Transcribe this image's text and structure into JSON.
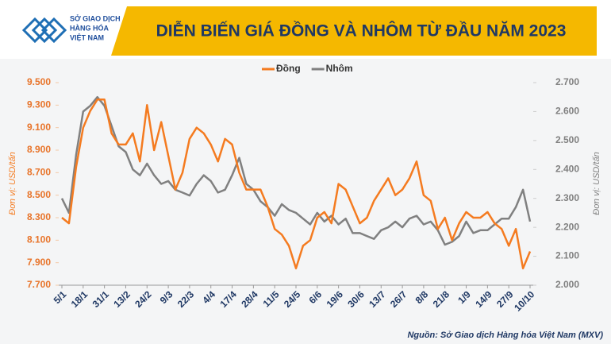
{
  "logo_lines": [
    "SỞ GIAO DỊCH",
    "HÀNG HÓA",
    "VIỆT NAM"
  ],
  "chart_data": {
    "type": "line",
    "title": "DIỄN BIẾN GIÁ ĐỒNG VÀ NHÔM TỪ ĐẦU NĂM 2023",
    "y_label": "Đơn vị: USD/tấn",
    "y2_label": "Đơn vị: USD/tấn",
    "source": "Nguồn: Sở Giao dịch Hàng hóa Việt Nam (MXV)",
    "categories": [
      "5/1",
      null,
      null,
      "18/1",
      null,
      null,
      "31/1",
      null,
      null,
      "13/2",
      null,
      null,
      "24/2",
      null,
      null,
      "9/3",
      null,
      null,
      "22/3",
      null,
      null,
      "4/4",
      null,
      null,
      "17/4",
      null,
      null,
      "28/4",
      null,
      null,
      "11/5",
      null,
      null,
      "24/5",
      null,
      null,
      "6/6",
      null,
      null,
      "19/6",
      null,
      null,
      "30/6",
      null,
      null,
      "13/7",
      null,
      null,
      "26/7",
      null,
      null,
      "8/8",
      null,
      null,
      "21/8",
      null,
      null,
      "1/9",
      null,
      null,
      "14/9",
      null,
      null,
      "27/9",
      null,
      null,
      "10/10"
    ],
    "series": [
      {
        "name": "Đồng",
        "color": "#f47b20",
        "values": [
          8300,
          8250,
          8750,
          9100,
          9250,
          9350,
          9350,
          9050,
          8950,
          8950,
          9050,
          8800,
          9300,
          8900,
          9150,
          8850,
          8550,
          8700,
          9000,
          9100,
          9050,
          8950,
          8800,
          9000,
          8950,
          8700,
          8550,
          8550,
          8550,
          8400,
          8200,
          8150,
          8050,
          7850,
          8050,
          8100,
          8300,
          8350,
          8250,
          8600,
          8550,
          8400,
          8250,
          8300,
          8450,
          8550,
          8650,
          8500,
          8550,
          8650,
          8800,
          8500,
          8450,
          8200,
          8300,
          8100,
          8250,
          8350,
          8300,
          8300,
          8350,
          8250,
          8200,
          8050,
          8200,
          7850,
          8000
        ]
      },
      {
        "name": "Nhôm",
        "color": "#808080",
        "axis": "y2",
        "values": [
          2300,
          2250,
          2450,
          2600,
          2620,
          2650,
          2620,
          2550,
          2480,
          2460,
          2400,
          2380,
          2420,
          2380,
          2350,
          2360,
          2330,
          2320,
          2310,
          2350,
          2380,
          2360,
          2320,
          2330,
          2380,
          2440,
          2350,
          2330,
          2290,
          2270,
          2240,
          2280,
          2260,
          2250,
          2230,
          2210,
          2250,
          2220,
          2240,
          2210,
          2230,
          2180,
          2180,
          2170,
          2160,
          2190,
          2200,
          2220,
          2200,
          2230,
          2240,
          2210,
          2220,
          2190,
          2140,
          2150,
          2170,
          2220,
          2180,
          2190,
          2190,
          2210,
          2230,
          2230,
          2270,
          2330,
          2220
        ]
      }
    ],
    "ylim": [
      7700,
      9500
    ],
    "yticks": [
      {
        "value": 7700,
        "label": "7.700"
      },
      {
        "value": 7900,
        "label": "7.900"
      },
      {
        "value": 8100,
        "label": "8.100"
      },
      {
        "value": 8300,
        "label": "8.300"
      },
      {
        "value": 8500,
        "label": "8.500"
      },
      {
        "value": 8700,
        "label": "8.700"
      },
      {
        "value": 8900,
        "label": "8.900"
      },
      {
        "value": 9100,
        "label": "9.100"
      },
      {
        "value": 9300,
        "label": "9.300"
      },
      {
        "value": 9500,
        "label": "9.500"
      }
    ],
    "y2lim": [
      2000,
      2700
    ],
    "y2ticks": [
      {
        "value": 2000,
        "label": "2.000"
      },
      {
        "value": 2100,
        "label": "2.100"
      },
      {
        "value": 2200,
        "label": "2.200"
      },
      {
        "value": 2300,
        "label": "2.300"
      },
      {
        "value": 2400,
        "label": "2.400"
      },
      {
        "value": 2500,
        "label": "2.500"
      },
      {
        "value": 2600,
        "label": "2.600"
      },
      {
        "value": 2700,
        "label": "2.700"
      }
    ],
    "grid": false,
    "legend": "top"
  }
}
